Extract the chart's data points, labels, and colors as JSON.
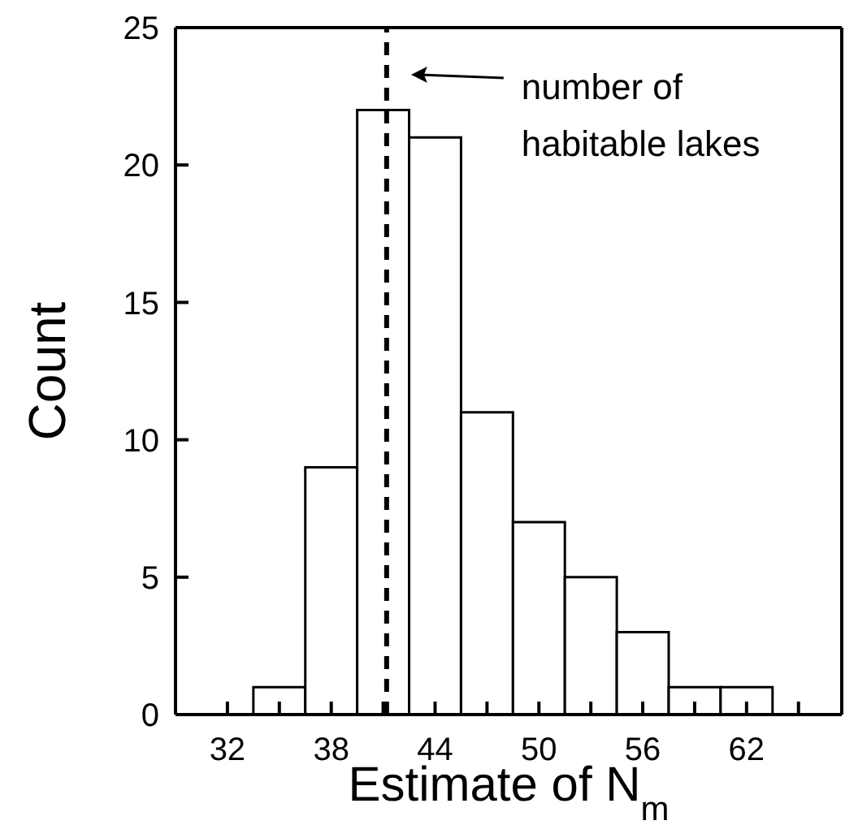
{
  "chart_data": {
    "type": "histogram",
    "xlabel": "Estimate of N$_{m}$",
    "ylabel": "Count",
    "bins": [
      33.5,
      36.5,
      39.5,
      42.5,
      45.5,
      48.5,
      51.5,
      54.5,
      57.5,
      60.5,
      63.5
    ],
    "values": [
      1,
      9,
      22,
      21,
      11,
      7,
      5,
      3,
      1,
      1
    ],
    "color": "#ffffff",
    "xlim": [
      29,
      67.5
    ],
    "xticks": [
      32,
      {
        "value": 35,
        "label": null
      },
      38,
      {
        "value": 41,
        "label": null
      },
      44,
      {
        "value": 47,
        "label": null
      },
      50,
      {
        "value": 53,
        "label": null
      },
      56,
      {
        "value": 59,
        "label": null
      },
      62,
      {
        "value": 65,
        "label": null
      }
    ],
    "ylim": [
      0,
      25
    ],
    "yticks": [
      0,
      5,
      10,
      15,
      20,
      25
    ],
    "ref_lines": [
      {
        "axis": "x",
        "value": 41.2,
        "label": "number of habitable lakes",
        "color": "#000000",
        "line_style": "dashed"
      }
    ]
  }
}
